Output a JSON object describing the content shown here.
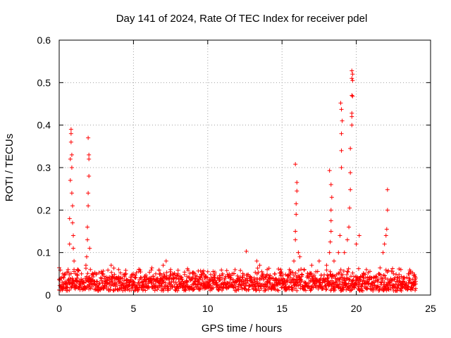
{
  "chart_data": {
    "type": "scatter",
    "title": "Day 141 of 2024, Rate Of TEC Index for receiver pdel",
    "xlabel": "GPS time / hours",
    "ylabel": "ROTI / TECUs",
    "xlim": [
      0,
      25
    ],
    "ylim": [
      0,
      0.6
    ],
    "xticks": [
      0,
      5,
      10,
      15,
      20,
      25
    ],
    "xtick_labels": [
      "0",
      "5",
      "10",
      "15",
      "20",
      "25"
    ],
    "yticks": [
      0,
      0.1,
      0.2,
      0.3,
      0.4,
      0.5,
      0.6
    ],
    "ytick_labels": [
      "0",
      "0.1",
      "0.2",
      "0.3",
      "0.4",
      "0.5",
      "0.6"
    ],
    "grid": true,
    "marker": "+",
    "series": [
      {
        "name": "ROTI",
        "color": "#ff0000",
        "baseline_band": [
          0.01,
          0.05
        ],
        "points": [
          [
            0.1,
            0.02
          ],
          [
            0.2,
            0.03
          ],
          [
            0.3,
            0.04
          ],
          [
            0.4,
            0.05
          ],
          [
            0.5,
            0.03
          ],
          [
            0.6,
            0.06
          ],
          [
            0.7,
            0.12
          ],
          [
            0.7,
            0.18
          ],
          [
            0.75,
            0.27
          ],
          [
            0.75,
            0.32
          ],
          [
            0.8,
            0.36
          ],
          [
            0.8,
            0.38
          ],
          [
            0.8,
            0.39
          ],
          [
            0.85,
            0.33
          ],
          [
            0.85,
            0.3
          ],
          [
            0.85,
            0.24
          ],
          [
            0.9,
            0.21
          ],
          [
            0.9,
            0.17
          ],
          [
            0.95,
            0.14
          ],
          [
            0.95,
            0.11
          ],
          [
            1.0,
            0.08
          ],
          [
            1.0,
            0.06
          ],
          [
            1.1,
            0.05
          ],
          [
            1.2,
            0.04
          ],
          [
            1.5,
            0.05
          ],
          [
            1.8,
            0.07
          ],
          [
            1.85,
            0.09
          ],
          [
            1.9,
            0.13
          ],
          [
            1.9,
            0.16
          ],
          [
            1.95,
            0.21
          ],
          [
            1.95,
            0.24
          ],
          [
            2.0,
            0.28
          ],
          [
            2.0,
            0.32
          ],
          [
            2.0,
            0.33
          ],
          [
            1.95,
            0.37
          ],
          [
            2.05,
            0.11
          ],
          [
            2.1,
            0.06
          ],
          [
            2.5,
            0.05
          ],
          [
            3.5,
            0.07
          ],
          [
            4.0,
            0.06
          ],
          [
            4.5,
            0.05
          ],
          [
            5.5,
            0.04
          ],
          [
            6.5,
            0.05
          ],
          [
            7.0,
            0.07
          ],
          [
            7.2,
            0.08
          ],
          [
            7.5,
            0.06
          ],
          [
            8.0,
            0.05
          ],
          [
            9.0,
            0.04
          ],
          [
            10.0,
            0.055
          ],
          [
            11.0,
            0.05
          ],
          [
            12.0,
            0.045
          ],
          [
            12.6,
            0.103
          ],
          [
            13.3,
            0.08
          ],
          [
            13.5,
            0.07
          ],
          [
            14.0,
            0.06
          ],
          [
            14.5,
            0.05
          ],
          [
            15.0,
            0.05
          ],
          [
            15.5,
            0.06
          ],
          [
            15.8,
            0.08
          ],
          [
            15.9,
            0.13
          ],
          [
            15.9,
            0.15
          ],
          [
            15.95,
            0.19
          ],
          [
            15.95,
            0.215
          ],
          [
            16.0,
            0.245
          ],
          [
            16.0,
            0.265
          ],
          [
            15.9,
            0.308
          ],
          [
            16.1,
            0.1
          ],
          [
            16.2,
            0.09
          ],
          [
            16.5,
            0.06
          ],
          [
            17.0,
            0.07
          ],
          [
            17.5,
            0.08
          ],
          [
            18.0,
            0.07
          ],
          [
            18.2,
            0.1
          ],
          [
            18.25,
            0.125
          ],
          [
            18.3,
            0.15
          ],
          [
            18.3,
            0.175
          ],
          [
            18.3,
            0.2
          ],
          [
            18.35,
            0.23
          ],
          [
            18.3,
            0.26
          ],
          [
            18.2,
            0.293
          ],
          [
            18.5,
            0.08
          ],
          [
            18.8,
            0.1
          ],
          [
            18.9,
            0.14
          ],
          [
            19.0,
            0.3
          ],
          [
            19.0,
            0.34
          ],
          [
            19.0,
            0.38
          ],
          [
            19.05,
            0.41
          ],
          [
            19.0,
            0.437
          ],
          [
            18.95,
            0.452
          ],
          [
            19.2,
            0.1
          ],
          [
            19.4,
            0.13
          ],
          [
            19.5,
            0.16
          ],
          [
            19.55,
            0.205
          ],
          [
            19.6,
            0.248
          ],
          [
            19.6,
            0.288
          ],
          [
            19.6,
            0.345
          ],
          [
            19.7,
            0.4
          ],
          [
            19.7,
            0.42
          ],
          [
            19.7,
            0.428
          ],
          [
            19.75,
            0.468
          ],
          [
            19.7,
            0.47
          ],
          [
            19.75,
            0.505
          ],
          [
            19.7,
            0.51
          ],
          [
            19.75,
            0.52
          ],
          [
            19.7,
            0.528
          ],
          [
            20.0,
            0.12
          ],
          [
            20.2,
            0.14
          ],
          [
            20.5,
            0.05
          ],
          [
            21.0,
            0.04
          ],
          [
            21.5,
            0.05
          ],
          [
            21.8,
            0.1
          ],
          [
            21.9,
            0.12
          ],
          [
            22.0,
            0.14
          ],
          [
            22.05,
            0.155
          ],
          [
            22.1,
            0.2
          ],
          [
            22.1,
            0.248
          ],
          [
            22.5,
            0.05
          ],
          [
            23.0,
            0.06
          ],
          [
            23.5,
            0.05
          ],
          [
            24.0,
            0.04
          ]
        ]
      }
    ]
  }
}
